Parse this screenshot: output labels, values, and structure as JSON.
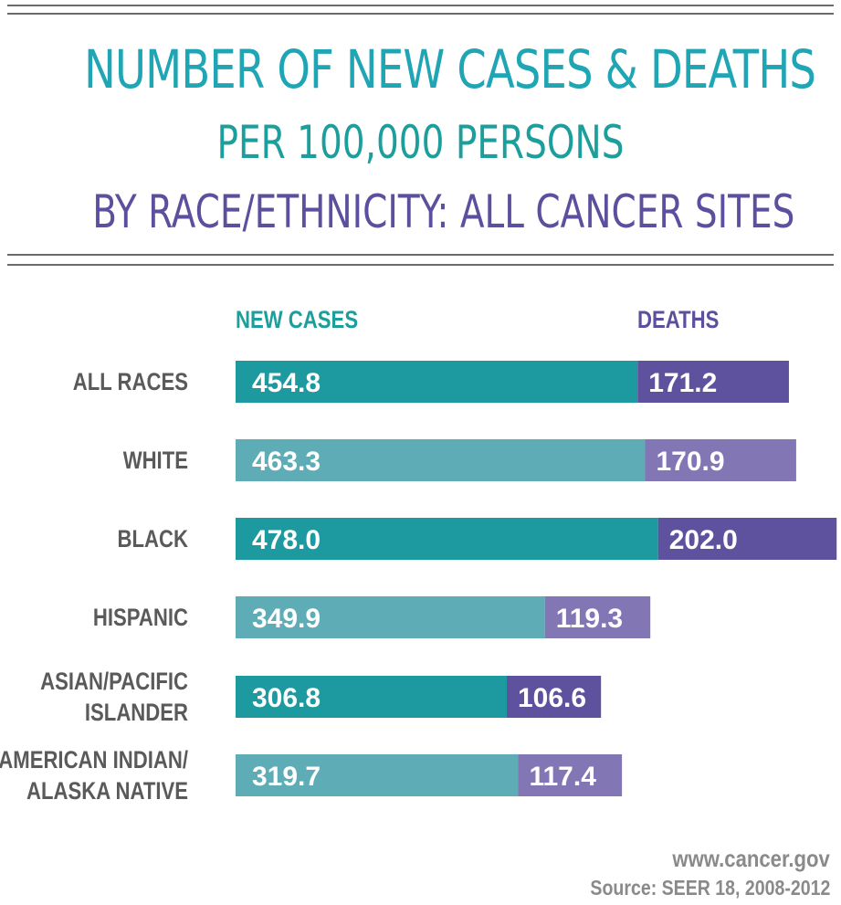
{
  "header": {
    "line1": "NUMBER OF NEW CASES & DEATHS",
    "line2": "PER 100,000 PERSONS",
    "line3": "BY RACE/ETHNICITY: ALL CANCER SITES"
  },
  "colors": {
    "cases_dark": "#1c9a9f",
    "cases_light": "#5eacb6",
    "deaths_dark": "#5e529f",
    "deaths_light": "#8376b5",
    "label": "#5a5a5a"
  },
  "chart_data": {
    "type": "bar",
    "orientation": "horizontal",
    "stacked": true,
    "categories": [
      [
        "ALL RACES"
      ],
      [
        "WHITE"
      ],
      [
        "BLACK"
      ],
      [
        "HISPANIC"
      ],
      [
        "ASIAN/PACIFIC",
        "ISLANDER"
      ],
      [
        "AMERICAN INDIAN/",
        "ALASKA NATIVE"
      ]
    ],
    "series": [
      {
        "name": "NEW CASES",
        "values": [
          454.8,
          463.3,
          478.0,
          349.9,
          306.8,
          319.7
        ],
        "labels": [
          "454.8",
          "463.3",
          "478.0",
          "349.9",
          "306.8",
          "319.7"
        ]
      },
      {
        "name": "DEATHS",
        "values": [
          171.2,
          170.9,
          202.0,
          119.3,
          106.6,
          117.4
        ],
        "labels": [
          "171.2",
          "170.9",
          "202.0",
          "119.3",
          "106.6",
          "117.4"
        ]
      }
    ],
    "legend_position": "top",
    "grid": false
  },
  "footer": {
    "url": "www.cancer.gov",
    "source": "Source: SEER 18, 2008-2012"
  }
}
